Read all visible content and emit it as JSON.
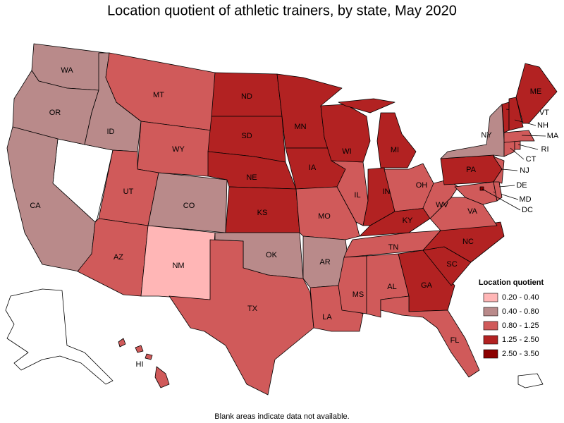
{
  "title": "Location quotient of athletic trainers, by state, May 2020",
  "footnote": "Blank areas indicate data not available.",
  "legend": {
    "title": "Location quotient",
    "position": "bottom-right",
    "bins": [
      {
        "label": "0.20 - 0.40",
        "color": "#ffb6b6"
      },
      {
        "label": "0.40 - 0.80",
        "color": "#b98a8a"
      },
      {
        "label": "0.80 - 1.25",
        "color": "#d05a5a"
      },
      {
        "label": "1.25 - 2.50",
        "color": "#b22222"
      },
      {
        "label": "2.50 - 3.50",
        "color": "#8b0000"
      }
    ]
  },
  "states": [
    {
      "abbr": "WA",
      "color": "#b98a8a"
    },
    {
      "abbr": "OR",
      "color": "#b98a8a"
    },
    {
      "abbr": "CA",
      "color": "#b98a8a"
    },
    {
      "abbr": "ID",
      "color": "#b98a8a"
    },
    {
      "abbr": "MT",
      "color": "#d05a5a"
    },
    {
      "abbr": "WY",
      "color": "#d05a5a"
    },
    {
      "abbr": "UT",
      "color": "#d05a5a"
    },
    {
      "abbr": "AZ",
      "color": "#d05a5a"
    },
    {
      "abbr": "CO",
      "color": "#b98a8a"
    },
    {
      "abbr": "NM",
      "color": "#ffb6b6"
    },
    {
      "abbr": "ND",
      "color": "#b22222"
    },
    {
      "abbr": "SD",
      "color": "#b22222"
    },
    {
      "abbr": "NE",
      "color": "#b22222"
    },
    {
      "abbr": "KS",
      "color": "#b22222"
    },
    {
      "abbr": "OK",
      "color": "#b98a8a"
    },
    {
      "abbr": "TX",
      "color": "#d05a5a"
    },
    {
      "abbr": "MN",
      "color": "#b22222"
    },
    {
      "abbr": "IA",
      "color": "#b22222"
    },
    {
      "abbr": "MO",
      "color": "#d05a5a"
    },
    {
      "abbr": "AR",
      "color": "#b98a8a"
    },
    {
      "abbr": "LA",
      "color": "#d05a5a"
    },
    {
      "abbr": "WI",
      "color": "#b22222"
    },
    {
      "abbr": "IL",
      "color": "#d05a5a"
    },
    {
      "abbr": "MI",
      "color": "#b22222"
    },
    {
      "abbr": "IN",
      "color": "#b22222"
    },
    {
      "abbr": "OH",
      "color": "#d05a5a"
    },
    {
      "abbr": "KY",
      "color": "#b22222"
    },
    {
      "abbr": "TN",
      "color": "#d05a5a"
    },
    {
      "abbr": "MS",
      "color": "#d05a5a"
    },
    {
      "abbr": "AL",
      "color": "#d05a5a"
    },
    {
      "abbr": "GA",
      "color": "#b22222"
    },
    {
      "abbr": "FL",
      "color": "#d05a5a"
    },
    {
      "abbr": "SC",
      "color": "#b22222"
    },
    {
      "abbr": "NC",
      "color": "#b22222"
    },
    {
      "abbr": "VA",
      "color": "#d05a5a"
    },
    {
      "abbr": "WV",
      "color": "#d05a5a"
    },
    {
      "abbr": "PA",
      "color": "#b22222"
    },
    {
      "abbr": "NY",
      "color": "#b98a8a"
    },
    {
      "abbr": "NJ",
      "color": "#d05a5a"
    },
    {
      "abbr": "MD",
      "color": "#d05a5a"
    },
    {
      "abbr": "DE",
      "color": "#d05a5a"
    },
    {
      "abbr": "CT",
      "color": "#d05a5a"
    },
    {
      "abbr": "RI",
      "color": "#d05a5a"
    },
    {
      "abbr": "MA",
      "color": "#d05a5a"
    },
    {
      "abbr": "VT",
      "color": "#b22222"
    },
    {
      "abbr": "NH",
      "color": "#b22222"
    },
    {
      "abbr": "ME",
      "color": "#b22222"
    },
    {
      "abbr": "HI",
      "color": "#d05a5a"
    },
    {
      "abbr": "DC",
      "color": "#8b0000"
    }
  ]
}
